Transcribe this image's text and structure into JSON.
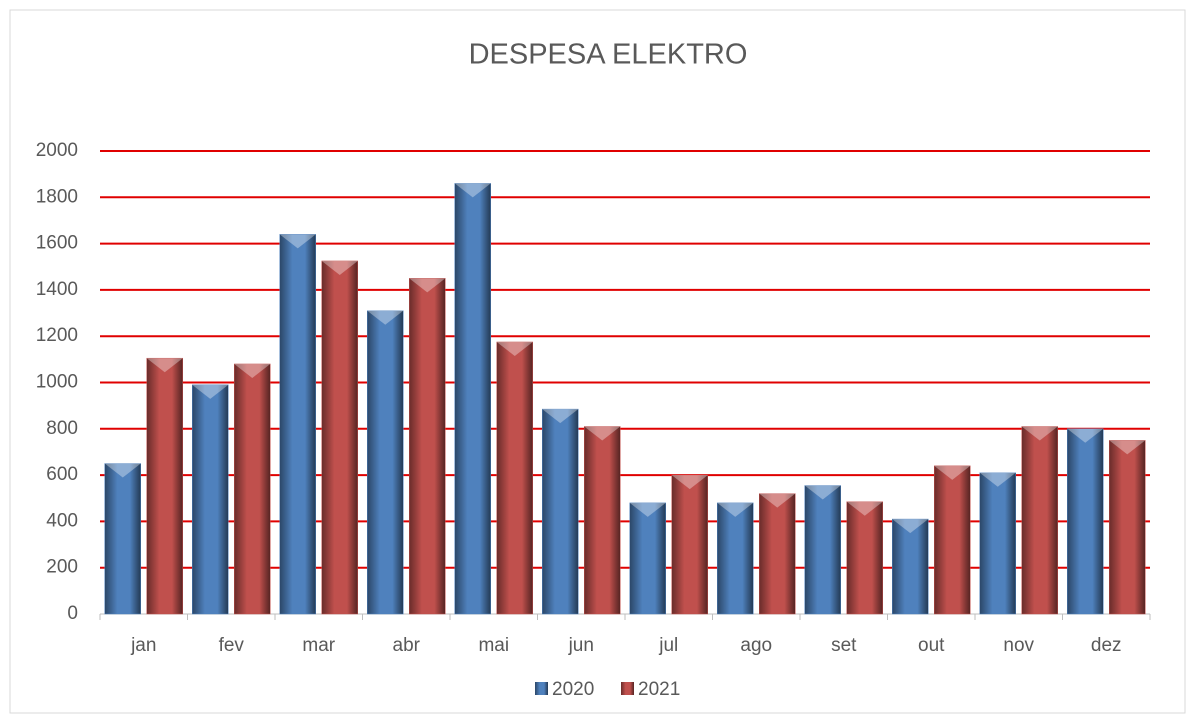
{
  "chart_data": {
    "type": "bar",
    "title": "DESPESA ELEKTRO",
    "categories": [
      "jan",
      "fev",
      "mar",
      "abr",
      "mai",
      "jun",
      "jul",
      "ago",
      "set",
      "out",
      "nov",
      "dez"
    ],
    "series": [
      {
        "name": "2020",
        "color": "#4f81bd",
        "values": [
          650,
          990,
          1640,
          1310,
          1860,
          885,
          480,
          480,
          555,
          410,
          610,
          800
        ]
      },
      {
        "name": "2021",
        "color": "#c0504d",
        "values": [
          1105,
          1080,
          1525,
          1450,
          1175,
          810,
          600,
          520,
          485,
          640,
          810,
          750
        ]
      }
    ],
    "ylim": [
      0,
      2000
    ],
    "yticks": [
      0,
      200,
      400,
      600,
      800,
      1000,
      1200,
      1400,
      1600,
      1800,
      2000
    ],
    "grid": true,
    "grid_color": "#e00000",
    "legend": "bottom"
  }
}
